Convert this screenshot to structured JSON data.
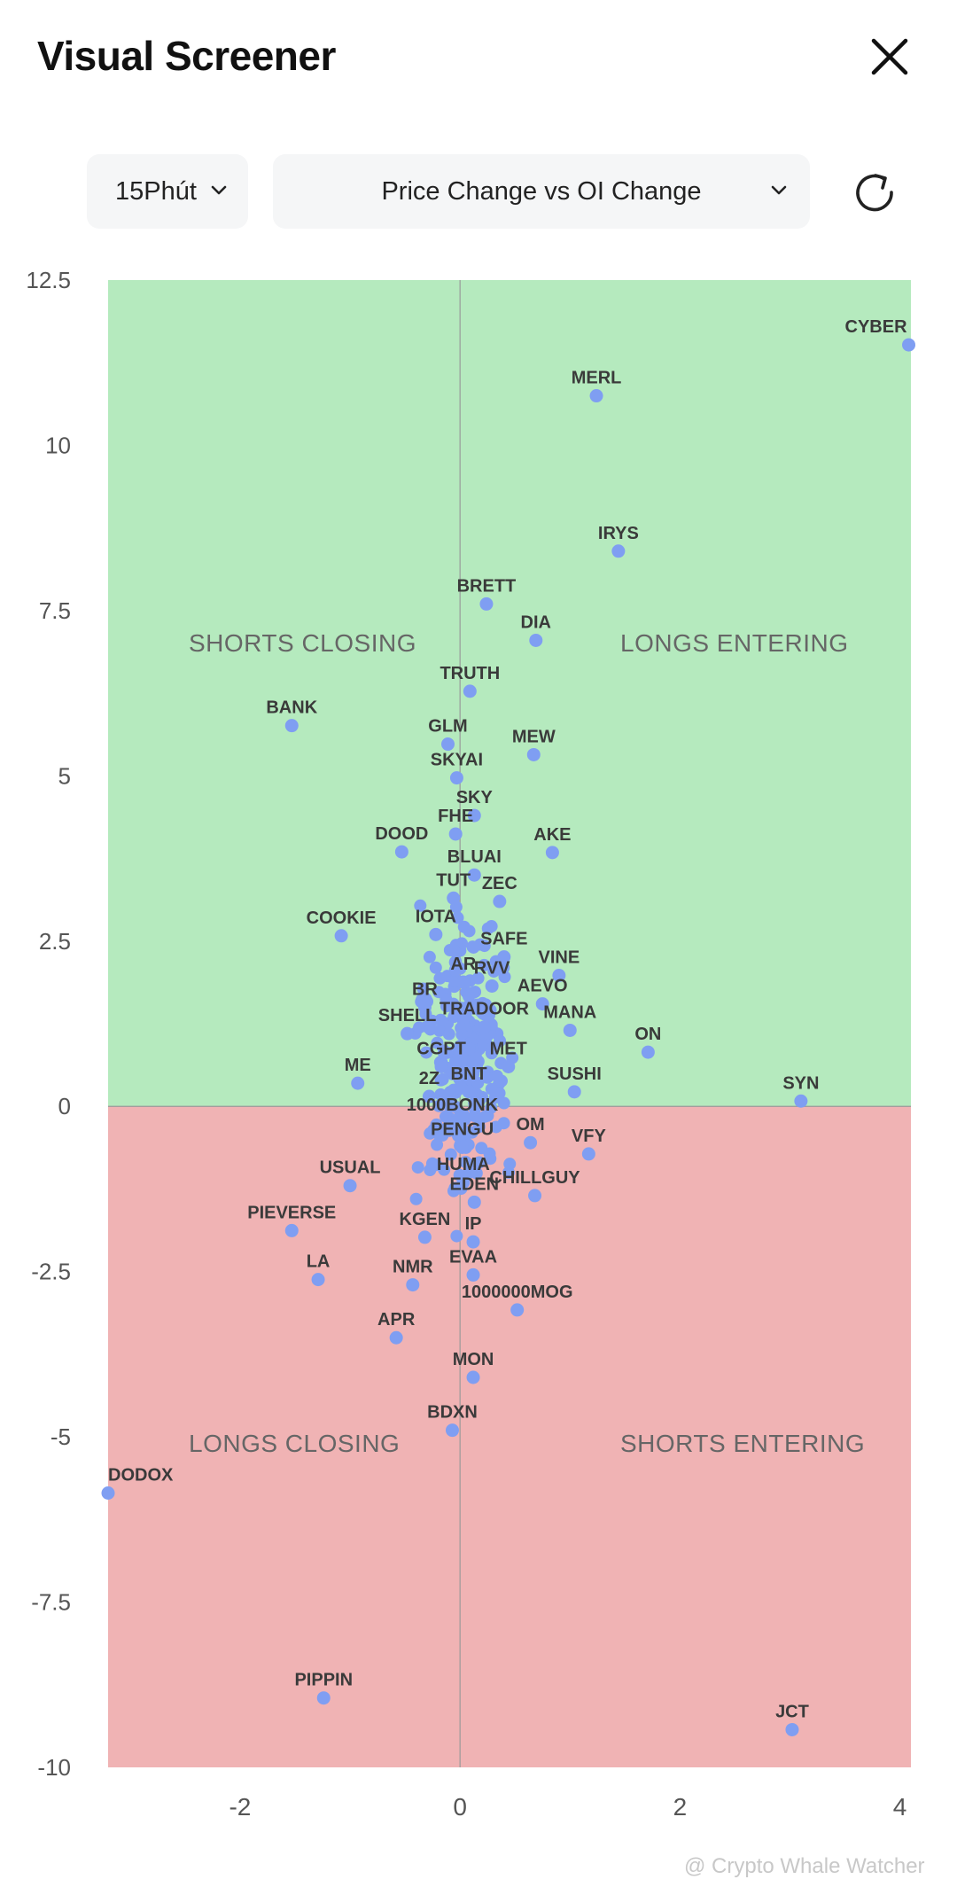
{
  "header": {
    "title": "Visual Screener"
  },
  "controls": {
    "timeframe": "15Phút",
    "metric": "Price Change vs OI Change"
  },
  "watermark": "@ Crypto Whale Watcher",
  "colors": {
    "top_region": "#b5eabe",
    "bottom_region": "#f0b3b4",
    "point": "#7f9ef2",
    "label": "#3a3a3a",
    "quadrant_text": "#666666"
  },
  "chart_data": {
    "type": "scatter",
    "xlabel": "",
    "ylabel": "",
    "xlim": [
      -3.2,
      4.1
    ],
    "ylim": [
      -10,
      12.5
    ],
    "xticks": [
      -2,
      0,
      2,
      4
    ],
    "yticks": [
      12.5,
      10,
      7.5,
      5,
      2.5,
      0,
      -2.5,
      -5,
      -7.5,
      -10
    ],
    "ytick_labels": [
      "12.5",
      "10",
      "7.5",
      "5",
      "2.5",
      "0",
      "-2.5",
      "-5",
      "-7.5",
      "-10"
    ],
    "quadrant_labels": {
      "top_left": "SHORTS CLOSING",
      "top_right": "LONGS ENTERING",
      "bottom_left": "LONGS CLOSING",
      "bottom_right": "SHORTS ENTERING"
    },
    "labeled_points": [
      {
        "label": "CYBER",
        "x": 4.08,
        "y": 11.52
      },
      {
        "label": "MERL",
        "x": 1.24,
        "y": 10.75
      },
      {
        "label": "IRYS",
        "x": 1.44,
        "y": 8.4
      },
      {
        "label": "BRETT",
        "x": 0.24,
        "y": 7.6
      },
      {
        "label": "DIA",
        "x": 0.69,
        "y": 7.05
      },
      {
        "label": "TRUTH",
        "x": 0.09,
        "y": 6.28
      },
      {
        "label": "BANK",
        "x": -1.53,
        "y": 5.76
      },
      {
        "label": "GLM",
        "x": -0.11,
        "y": 5.48
      },
      {
        "label": "MEW",
        "x": 0.67,
        "y": 5.32
      },
      {
        "label": "SKYAI",
        "x": -0.03,
        "y": 4.97
      },
      {
        "label": "SKY",
        "x": 0.13,
        "y": 4.4
      },
      {
        "label": "DOOD",
        "x": -0.53,
        "y": 3.85
      },
      {
        "label": "FHE",
        "x": -0.04,
        "y": 4.12
      },
      {
        "label": "AKE",
        "x": 0.84,
        "y": 3.84
      },
      {
        "label": "BLUAI",
        "x": 0.13,
        "y": 3.5
      },
      {
        "label": "TUT",
        "x": -0.06,
        "y": 3.15
      },
      {
        "label": "ZEC",
        "x": 0.36,
        "y": 3.1
      },
      {
        "label": "COOKIE",
        "x": -1.08,
        "y": 2.58
      },
      {
        "label": "IOTA",
        "x": -0.22,
        "y": 2.6
      },
      {
        "label": "SAFE",
        "x": 0.4,
        "y": 2.26
      },
      {
        "label": "VINE",
        "x": 0.9,
        "y": 1.98
      },
      {
        "label": "AR",
        "x": 0.03,
        "y": 1.88
      },
      {
        "label": "RVV",
        "x": 0.29,
        "y": 1.82
      },
      {
        "label": "AEVO",
        "x": 0.75,
        "y": 1.55
      },
      {
        "label": "BR",
        "x": -0.32,
        "y": 1.5
      },
      {
        "label": "TRADOOR",
        "x": 0.22,
        "y": 1.2
      },
      {
        "label": "SHELL",
        "x": -0.48,
        "y": 1.1
      },
      {
        "label": "MANA",
        "x": 1.0,
        "y": 1.15
      },
      {
        "label": "ON",
        "x": 1.71,
        "y": 0.82
      },
      {
        "label": "CGPT",
        "x": -0.17,
        "y": 0.6
      },
      {
        "label": "MET",
        "x": 0.44,
        "y": 0.6
      },
      {
        "label": "ME",
        "x": -0.93,
        "y": 0.35
      },
      {
        "label": "SUSHI",
        "x": 1.04,
        "y": 0.22
      },
      {
        "label": "SYN",
        "x": 3.1,
        "y": 0.08
      },
      {
        "label": "2Z",
        "x": -0.28,
        "y": 0.15
      },
      {
        "label": "BNT",
        "x": 0.08,
        "y": 0.22
      },
      {
        "label": "1000BONK",
        "x": -0.07,
        "y": -0.25
      },
      {
        "label": "OM",
        "x": 0.64,
        "y": -0.55
      },
      {
        "label": "VFY",
        "x": 1.17,
        "y": -0.72
      },
      {
        "label": "PENGU",
        "x": 0.02,
        "y": -0.62
      },
      {
        "label": "USUAL",
        "x": -1.0,
        "y": -1.2
      },
      {
        "label": "HUMA",
        "x": 0.03,
        "y": -1.15
      },
      {
        "label": "CHILLGUY",
        "x": 0.68,
        "y": -1.35
      },
      {
        "label": "EDEN",
        "x": 0.13,
        "y": -1.45
      },
      {
        "label": "PIEVERSE",
        "x": -1.53,
        "y": -1.88
      },
      {
        "label": "KGEN",
        "x": -0.32,
        "y": -1.98
      },
      {
        "label": "IP",
        "x": 0.12,
        "y": -2.05
      },
      {
        "label": "LA",
        "x": -1.29,
        "y": -2.62
      },
      {
        "label": "NMR",
        "x": -0.43,
        "y": -2.7
      },
      {
        "label": "EVAA",
        "x": 0.12,
        "y": -2.55
      },
      {
        "label": "1000000MOG",
        "x": 0.52,
        "y": -3.08
      },
      {
        "label": "APR",
        "x": -0.58,
        "y": -3.5
      },
      {
        "label": "MON",
        "x": 0.12,
        "y": -4.1
      },
      {
        "label": "BDXN",
        "x": -0.07,
        "y": -4.9
      },
      {
        "label": "DODOX",
        "x": -3.2,
        "y": -5.85
      },
      {
        "label": "PIPPIN",
        "x": -1.24,
        "y": -8.95
      },
      {
        "label": "JCT",
        "x": 3.02,
        "y": -9.43
      }
    ]
  }
}
